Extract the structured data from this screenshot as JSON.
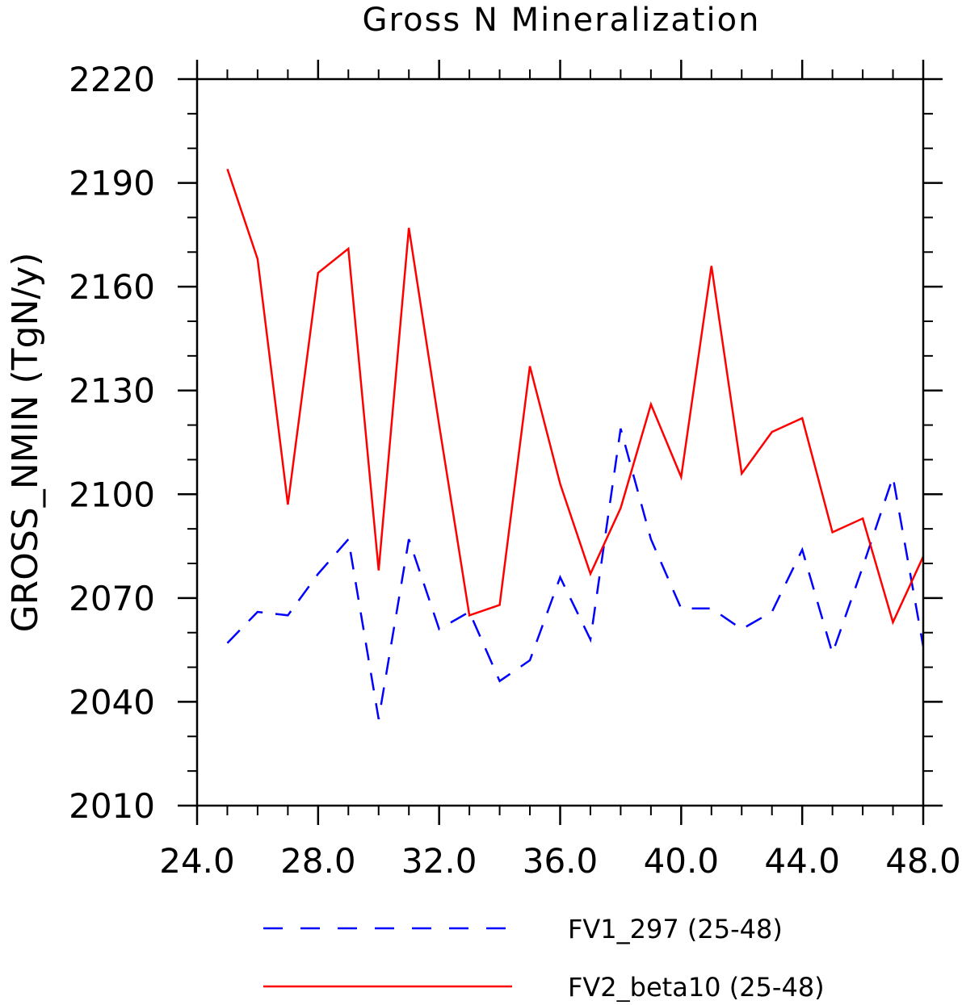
{
  "chart_data": {
    "type": "line",
    "title": "Gross N Mineralization",
    "xlabel": "",
    "ylabel": "GROSS_NMIN   (TgN/y)",
    "xlim": [
      24,
      48
    ],
    "ylim": [
      2010,
      2220
    ],
    "x_ticks": [
      24,
      28,
      32,
      36,
      40,
      44,
      48
    ],
    "x_tick_labels": [
      "24.0",
      "28.0",
      "32.0",
      "36.0",
      "40.0",
      "44.0",
      "48.0"
    ],
    "y_ticks": [
      2010,
      2040,
      2070,
      2100,
      2130,
      2160,
      2190,
      2220
    ],
    "y_tick_labels": [
      "2010",
      "2040",
      "2070",
      "2100",
      "2130",
      "2160",
      "2190",
      "2220"
    ],
    "grid": false,
    "legend_position": "bottom",
    "x": [
      25,
      26,
      27,
      28,
      29,
      30,
      31,
      32,
      33,
      34,
      35,
      36,
      37,
      38,
      39,
      40,
      41,
      42,
      43,
      44,
      45,
      46,
      47,
      48
    ],
    "series": [
      {
        "name": "FV1_297 (25-48)",
        "color": "#0000ff",
        "style": "dashed",
        "values": [
          2057,
          2066,
          2065,
          2077,
          2087,
          2035,
          2087,
          2061,
          2066,
          2046,
          2052,
          2076,
          2058,
          2119,
          2087,
          2067,
          2067,
          2061,
          2066,
          2084,
          2054,
          2079,
          2105,
          2056
        ]
      },
      {
        "name": "FV2_beta10 (25-48)",
        "color": "#ff0000",
        "style": "solid",
        "values": [
          2194,
          2168,
          2097,
          2164,
          2171,
          2078,
          2177,
          2120,
          2065,
          2068,
          2137,
          2103,
          2077,
          2096,
          2126,
          2105,
          2166,
          2106,
          2118,
          2122,
          2089,
          2093,
          2063,
          2082
        ]
      }
    ]
  }
}
